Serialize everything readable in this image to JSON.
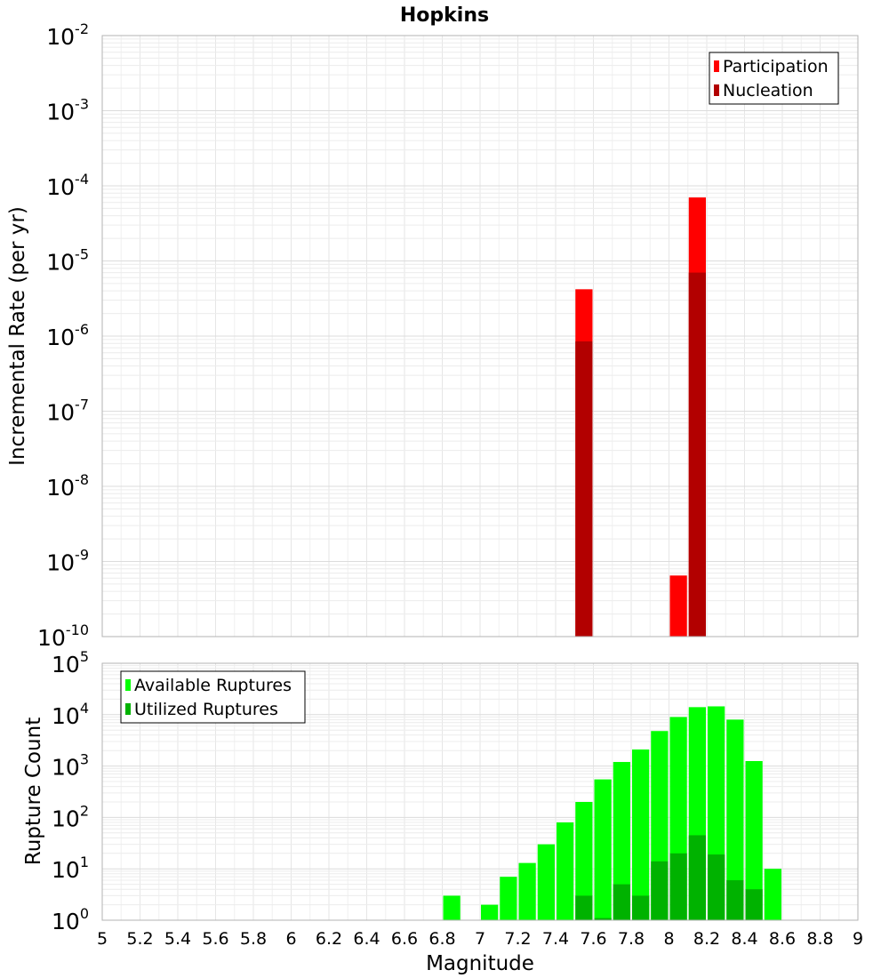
{
  "chart_data": [
    {
      "type": "bar",
      "title": "Hopkins",
      "ylabel": "Incremental Rate (per yr)",
      "xlabel": "",
      "yscale": "log",
      "ylim_exponents": [
        -10,
        -2
      ],
      "xlim": [
        5,
        9
      ],
      "grid": true,
      "legend_position": "top-right",
      "series": [
        {
          "name": "Participation",
          "color": "#ff0000",
          "points": [
            {
              "x": 7.55,
              "y": 4.2e-06
            },
            {
              "x": 8.05,
              "y": 6.5e-10
            },
            {
              "x": 8.15,
              "y": 7e-05
            }
          ]
        },
        {
          "name": "Nucleation",
          "color": "#b20000",
          "points": [
            {
              "x": 7.55,
              "y": 8.5e-07
            },
            {
              "x": 8.15,
              "y": 7e-06
            }
          ]
        }
      ]
    },
    {
      "type": "bar",
      "title": "",
      "ylabel": "Rupture Count",
      "xlabel": "Magnitude",
      "yscale": "log",
      "ylim_exponents": [
        0,
        5
      ],
      "xlim": [
        5,
        9
      ],
      "xticks": [
        "5",
        "5.2",
        "5.4",
        "5.6",
        "5.8",
        "6",
        "6.2",
        "6.4",
        "6.6",
        "6.8",
        "7",
        "7.2",
        "7.4",
        "7.6",
        "7.8",
        "8",
        "8.2",
        "8.4",
        "8.6",
        "8.8",
        "9"
      ],
      "grid": true,
      "legend_position": "top-left",
      "series": [
        {
          "name": "Available Ruptures",
          "color": "#00ff00",
          "points": [
            {
              "x": 6.85,
              "y": 3
            },
            {
              "x": 7.05,
              "y": 2
            },
            {
              "x": 7.15,
              "y": 7
            },
            {
              "x": 7.25,
              "y": 13
            },
            {
              "x": 7.35,
              "y": 30
            },
            {
              "x": 7.45,
              "y": 80
            },
            {
              "x": 7.55,
              "y": 200
            },
            {
              "x": 7.65,
              "y": 550
            },
            {
              "x": 7.75,
              "y": 1200
            },
            {
              "x": 7.85,
              "y": 2100
            },
            {
              "x": 7.95,
              "y": 4800
            },
            {
              "x": 8.05,
              "y": 9000
            },
            {
              "x": 8.15,
              "y": 14000
            },
            {
              "x": 8.25,
              "y": 14500
            },
            {
              "x": 8.35,
              "y": 8000
            },
            {
              "x": 8.45,
              "y": 1250
            },
            {
              "x": 8.55,
              "y": 10
            }
          ]
        },
        {
          "name": "Utilized Ruptures",
          "color": "#00b200",
          "points": [
            {
              "x": 7.55,
              "y": 3
            },
            {
              "x": 7.65,
              "y": 1.1
            },
            {
              "x": 7.75,
              "y": 5
            },
            {
              "x": 7.85,
              "y": 3
            },
            {
              "x": 7.95,
              "y": 14
            },
            {
              "x": 8.05,
              "y": 20
            },
            {
              "x": 8.15,
              "y": 45
            },
            {
              "x": 8.25,
              "y": 19
            },
            {
              "x": 8.35,
              "y": 6
            },
            {
              "x": 8.45,
              "y": 4
            }
          ]
        }
      ]
    }
  ]
}
